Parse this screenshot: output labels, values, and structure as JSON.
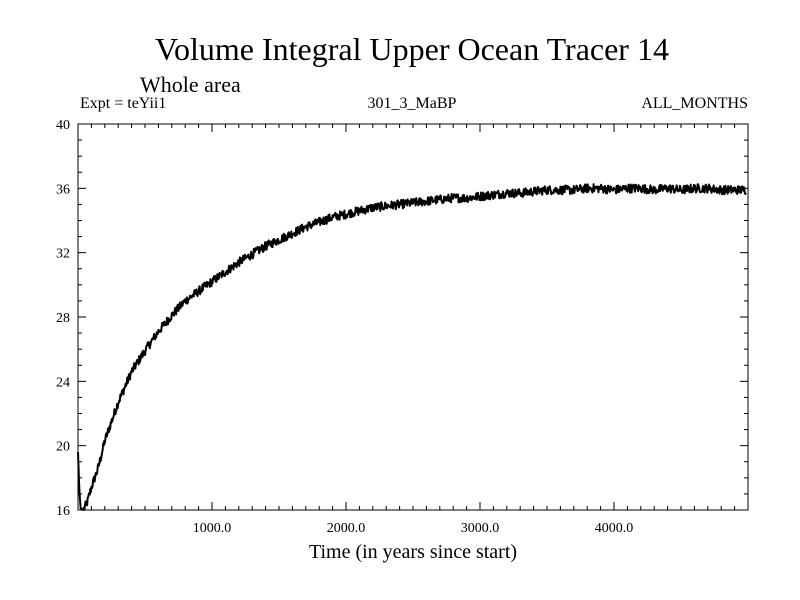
{
  "chart_data": {
    "type": "line",
    "title": "Volume Integral Upper Ocean Tracer 14",
    "subtitle": "Whole area",
    "experiment": "Expt = teYii1",
    "run_id": "301_3_MaBP",
    "period": "ALL_MONTHS",
    "xlabel": "Time (in years since start)",
    "ylabel": "",
    "xlim": [
      0,
      5000
    ],
    "ylim": [
      16,
      40
    ],
    "x_ticks": [
      1000,
      2000,
      3000,
      4000
    ],
    "x_tick_labels": [
      "1000.0",
      "2000.0",
      "3000.0",
      "4000.0"
    ],
    "y_ticks": [
      16,
      20,
      24,
      28,
      32,
      36,
      40
    ],
    "y_tick_labels": [
      "16",
      "20",
      "24",
      "28",
      "32",
      "36",
      "40"
    ],
    "grid": false,
    "series": [
      {
        "name": "Tracer 14",
        "x": [
          0,
          10,
          20,
          40,
          70,
          100,
          150,
          200,
          300,
          400,
          500,
          600,
          700,
          800,
          900,
          1000,
          1100,
          1200,
          1300,
          1400,
          1500,
          1600,
          1700,
          1800,
          1900,
          2000,
          2100,
          2200,
          2300,
          2400,
          2500,
          2600,
          2700,
          2800,
          2900,
          3000,
          3100,
          3200,
          3300,
          3400,
          3500,
          3600,
          3700,
          3800,
          3900,
          4000,
          4100,
          4200,
          4300,
          4400,
          4500,
          4600,
          4700,
          4800,
          4900,
          4990
        ],
        "y": [
          19.6,
          17.2,
          16.1,
          16.0,
          16.5,
          17.4,
          18.6,
          20.3,
          22.7,
          24.6,
          25.9,
          27.1,
          28.1,
          29.0,
          29.6,
          30.2,
          30.8,
          31.4,
          31.9,
          32.4,
          32.8,
          33.2,
          33.6,
          33.9,
          34.2,
          34.4,
          34.6,
          34.8,
          34.9,
          35.0,
          35.1,
          35.2,
          35.3,
          35.4,
          35.4,
          35.5,
          35.6,
          35.7,
          35.7,
          35.8,
          35.9,
          35.9,
          35.9,
          36.0,
          36.0,
          35.9,
          36.0,
          36.0,
          35.9,
          36.0,
          35.9,
          36.0,
          36.0,
          35.9,
          35.9,
          35.9
        ]
      }
    ]
  }
}
